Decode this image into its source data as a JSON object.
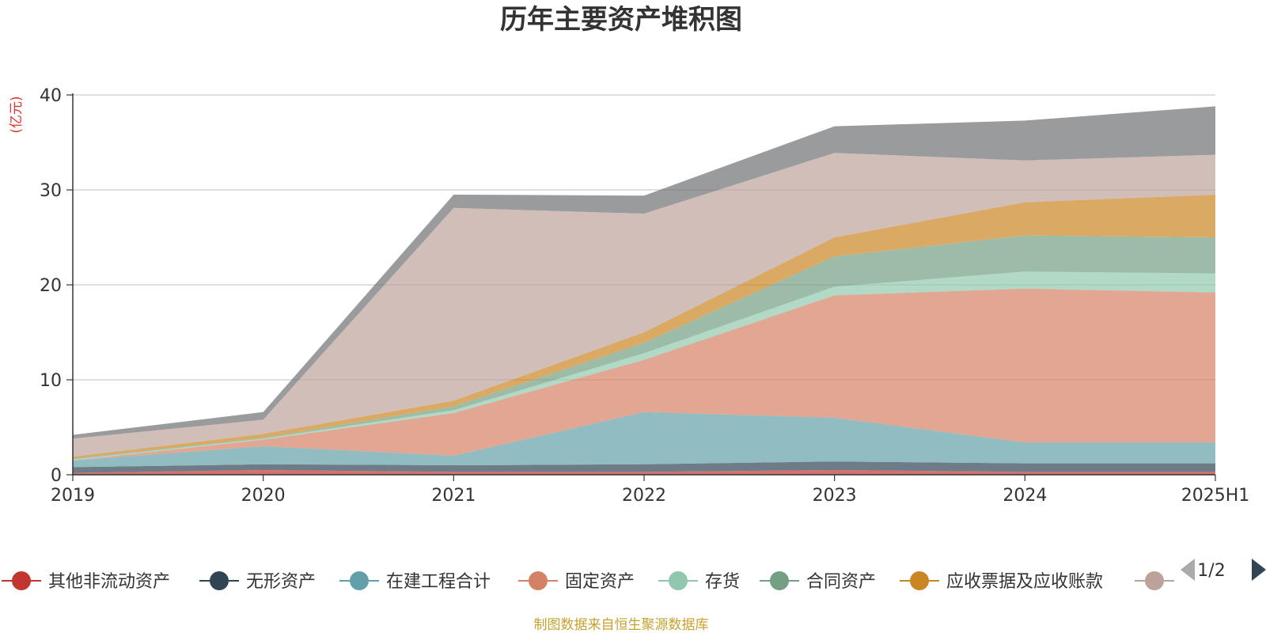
{
  "chart_data": {
    "type": "area",
    "stacked": true,
    "title": "历年主要资产堆积图",
    "ylabel": "(亿元)",
    "x": [
      "2019",
      "2020",
      "2021",
      "2022",
      "2023",
      "2024",
      "2025H1"
    ],
    "ylim": [
      0,
      40
    ],
    "yticks": [
      0,
      10,
      20,
      30,
      40
    ],
    "grid": true,
    "legend_position": "bottom",
    "series": [
      {
        "name": "其他非流动资产",
        "color": "#c23531",
        "values": [
          0.2,
          0.5,
          0.3,
          0.3,
          0.5,
          0.3,
          0.3
        ]
      },
      {
        "name": "无形资产",
        "color": "#2f4554",
        "values": [
          0.6,
          0.6,
          0.7,
          0.8,
          0.9,
          0.9,
          0.9
        ]
      },
      {
        "name": "在建工程合计",
        "color": "#61a0a8",
        "values": [
          0.7,
          1.9,
          1.0,
          5.5,
          4.6,
          2.2,
          2.2
        ]
      },
      {
        "name": "固定资产",
        "color": "#d48265",
        "values": [
          0.0,
          0.7,
          4.5,
          5.5,
          12.9,
          16.2,
          15.8
        ]
      },
      {
        "name": "存货",
        "color": "#91c7ae",
        "values": [
          0.1,
          0.1,
          0.3,
          0.7,
          0.9,
          1.8,
          2.0
        ]
      },
      {
        "name": "合同资产",
        "color": "#749f83",
        "values": [
          0.1,
          0.1,
          0.4,
          1.1,
          3.2,
          3.8,
          3.8
        ]
      },
      {
        "name": "应收票据及应收账款",
        "color": "#ca8622",
        "values": [
          0.2,
          0.4,
          0.6,
          1.1,
          2.0,
          3.5,
          4.5
        ]
      },
      {
        "name": "",
        "color": "#bda29a",
        "values": [
          1.9,
          1.5,
          20.3,
          12.5,
          8.9,
          4.4,
          4.2
        ]
      },
      {
        "name": "",
        "color": "#6e7074",
        "values": [
          0.4,
          0.8,
          1.4,
          1.9,
          2.8,
          4.2,
          5.1
        ]
      }
    ]
  },
  "legend": {
    "page_indicator": "1/2",
    "prev_icon": "triangle-left-icon",
    "next_icon": "triangle-right-icon"
  },
  "source_note": "制图数据来自恒生聚源数据库"
}
